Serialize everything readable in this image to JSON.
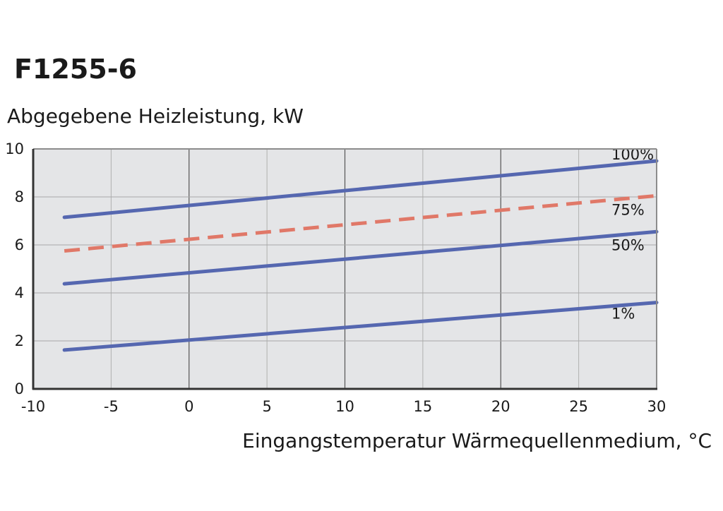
{
  "title": "F1255-6",
  "chart_data": {
    "type": "line",
    "ylabel": "Abgegebene Heizleistung, kW",
    "xlabel": "Eingangstemperatur Wärmequellenmedium, °C",
    "xlim": [
      -10,
      30
    ],
    "ylim": [
      0,
      10
    ],
    "x_ticks": [
      "-10",
      "-5",
      "0",
      "5",
      "10",
      "15",
      "20",
      "25",
      "30"
    ],
    "y_ticks": [
      "0",
      "2",
      "4",
      "6",
      "8",
      "10"
    ],
    "grid": true,
    "series": [
      {
        "name": "100%",
        "x": [
          -8,
          30
        ],
        "y": [
          7.15,
          9.5
        ],
        "color": "#5567b0",
        "dash": false
      },
      {
        "name": "75%",
        "x": [
          -8,
          30
        ],
        "y": [
          5.75,
          8.05
        ],
        "color": "#e07868",
        "dash": true
      },
      {
        "name": "50%",
        "x": [
          -8,
          30
        ],
        "y": [
          4.38,
          6.55
        ],
        "color": "#5567b0",
        "dash": false
      },
      {
        "name": "1%",
        "x": [
          -8,
          30
        ],
        "y": [
          1.62,
          3.6
        ],
        "color": "#5567b0",
        "dash": false
      }
    ]
  }
}
